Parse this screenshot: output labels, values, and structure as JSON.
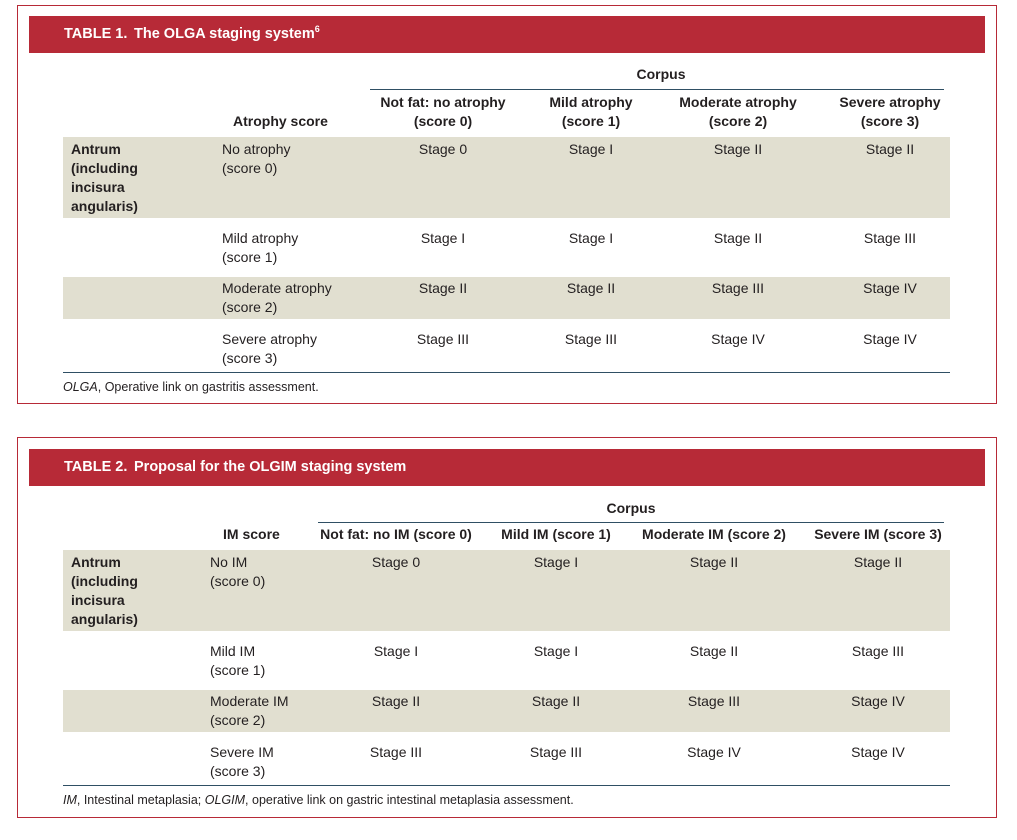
{
  "table1": {
    "number": "TABLE 1.",
    "title": "The OLGA staging system",
    "title_sup": "6",
    "group_header": "Corpus",
    "row_header": "Atrophy score",
    "columns": [
      {
        "line1": "Not fat: no atrophy",
        "line2": "(score 0)"
      },
      {
        "line1": "Mild atrophy",
        "line2": "(score 1)"
      },
      {
        "line1": "Moderate atrophy",
        "line2": "(score 2)"
      },
      {
        "line1": "Severe atrophy",
        "line2": "(score 3)"
      }
    ],
    "antrum_label": [
      "Antrum",
      "(including",
      "incisura",
      "angularis)"
    ],
    "rows": [
      {
        "label1": "No atrophy",
        "label2": "(score 0)",
        "cells": [
          "Stage 0",
          "Stage I",
          "Stage II",
          "Stage II"
        ]
      },
      {
        "label1": "Mild atrophy",
        "label2": "(score 1)",
        "cells": [
          "Stage I",
          "Stage I",
          "Stage II",
          "Stage III"
        ]
      },
      {
        "label1": "Moderate atrophy",
        "label2": "(score 2)",
        "cells": [
          "Stage II",
          "Stage II",
          "Stage III",
          "Stage IV"
        ]
      },
      {
        "label1": "Severe atrophy",
        "label2": "(score 3)",
        "cells": [
          "Stage III",
          "Stage III",
          "Stage IV",
          "Stage IV"
        ]
      }
    ],
    "footnote_abbr": "OLGA",
    "footnote_text": ", Operative link on gastritis assessment."
  },
  "table2": {
    "number": "TABLE 2.",
    "title": "Proposal for the OLGIM staging system",
    "group_header": "Corpus",
    "row_header": "IM score",
    "columns": [
      "Not fat: no IM (score 0)",
      "Mild IM (score 1)",
      "Moderate IM (score 2)",
      "Severe IM (score 3)"
    ],
    "antrum_label": [
      "Antrum",
      "(including",
      "incisura",
      "angularis)"
    ],
    "rows": [
      {
        "label1": "No IM",
        "label2": "(score 0)",
        "cells": [
          "Stage 0",
          "Stage I",
          "Stage II",
          "Stage II"
        ]
      },
      {
        "label1": "Mild IM",
        "label2": "(score 1)",
        "cells": [
          "Stage I",
          "Stage I",
          "Stage II",
          "Stage III"
        ]
      },
      {
        "label1": "Moderate IM",
        "label2": "(score 2)",
        "cells": [
          "Stage II",
          "Stage II",
          "Stage III",
          "Stage IV"
        ]
      },
      {
        "label1": "Severe IM",
        "label2": "(score 3)",
        "cells": [
          "Stage III",
          "Stage III",
          "Stage IV",
          "Stage IV"
        ]
      }
    ],
    "footnote_abbr1": "IM",
    "footnote_text1": ", Intestinal metaplasia; ",
    "footnote_abbr2": "OLGIM",
    "footnote_text2": ", operative link on gastric intestinal metaplasia assessment."
  }
}
